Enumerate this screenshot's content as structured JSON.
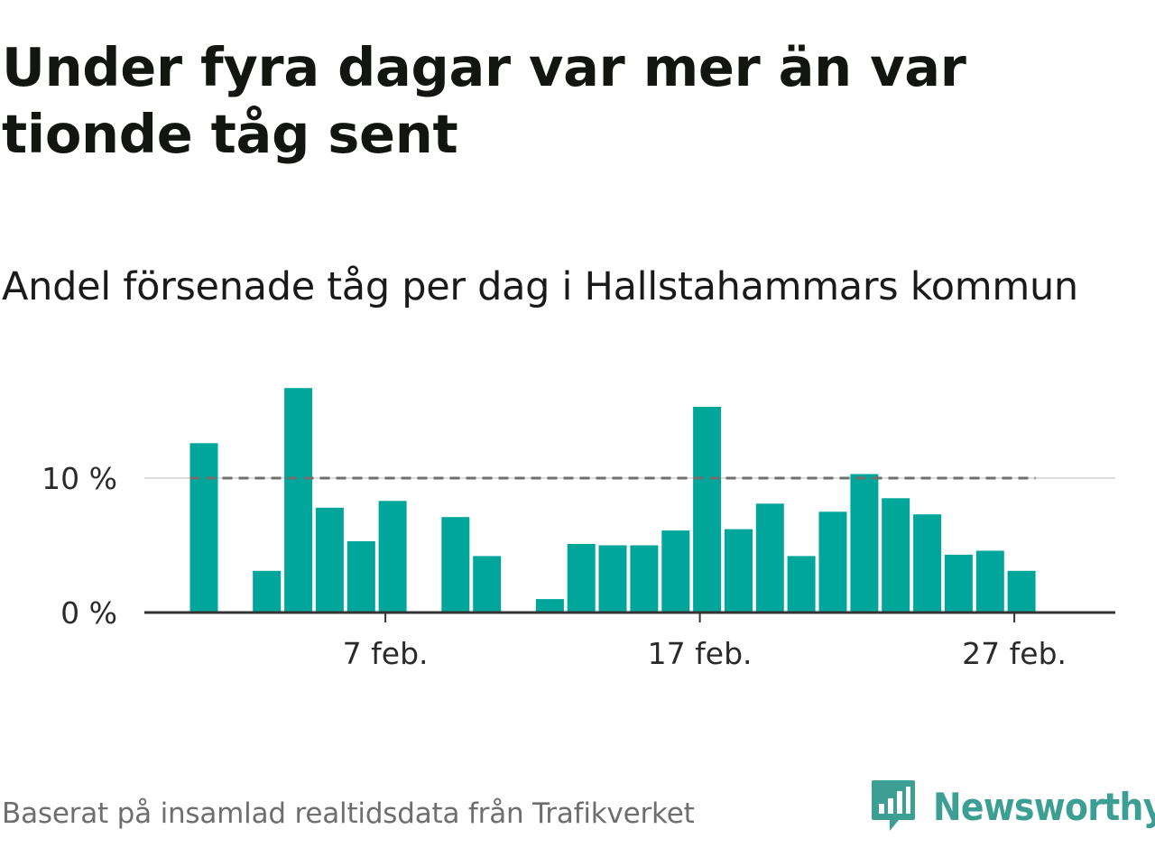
{
  "title": "Under fyra dagar var mer än var tionde tåg sent",
  "subtitle": "Andel försenade tåg per dag i Hallstahammars kommun",
  "footer": {
    "source": "Baserat på insamlad realtidsdata från Trafikverket",
    "brand": "Newsworthy",
    "logo_icon": "newsworthy-logo-icon"
  },
  "colors": {
    "bar": "#00a69a",
    "reference_line": "#707070",
    "gridline": "#dddddd",
    "axis": "#333333",
    "brand": "#3d9e94"
  },
  "chart_data": {
    "type": "bar",
    "x_unit": "day of February",
    "categories": [
      1,
      2,
      3,
      4,
      5,
      6,
      7,
      8,
      9,
      10,
      11,
      12,
      13,
      14,
      15,
      16,
      17,
      18,
      19,
      20,
      21,
      22,
      23,
      24,
      25,
      26,
      27,
      28
    ],
    "values": [
      12.6,
      0,
      3.1,
      16.7,
      7.8,
      5.3,
      8.3,
      0,
      7.1,
      4.2,
      0,
      1.0,
      5.1,
      5.0,
      5.0,
      6.1,
      15.3,
      6.2,
      8.1,
      4.2,
      7.5,
      10.3,
      8.5,
      7.3,
      4.3,
      4.6,
      3.1,
      0
    ],
    "ylim": [
      0,
      17
    ],
    "y_ticks": [
      {
        "value": 0,
        "label": "0 %"
      },
      {
        "value": 10,
        "label": "10 %"
      }
    ],
    "x_ticks": [
      {
        "value": 7,
        "label": "7 feb."
      },
      {
        "value": 17,
        "label": "17 feb."
      },
      {
        "value": 27,
        "label": "27 feb."
      }
    ],
    "reference_line": {
      "value": 10,
      "style": "dashed"
    },
    "grid": "horizontal at 10 %",
    "legend": "none"
  }
}
